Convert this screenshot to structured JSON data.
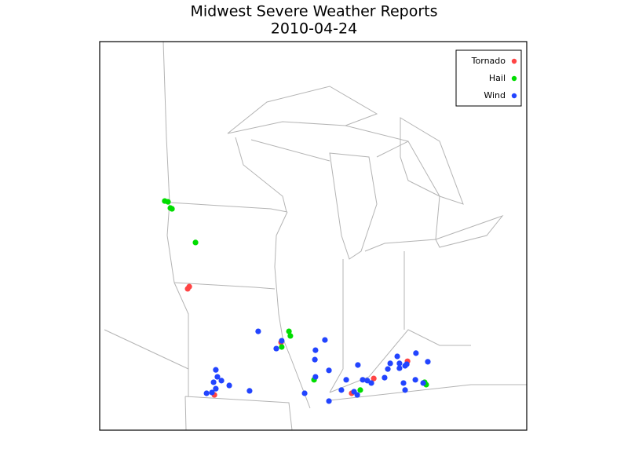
{
  "chart_data": {
    "type": "scatter",
    "title": "Midwest Severe Weather Reports",
    "subtitle": "2010-04-24",
    "series": [
      {
        "name": "Tornado",
        "color": "#ff4444",
        "lon": [
          -95.56,
          -95.48,
          -94.23,
          -90.91,
          -87.4,
          -86.3,
          -84.62
        ],
        "lat": [
          40.5,
          40.58,
          36.56,
          38.51,
          36.62,
          37.17,
          37.81
        ]
      },
      {
        "name": "Hail",
        "color": "#00dd00",
        "lon": [
          -96.7,
          -96.54,
          -96.42,
          -96.34,
          -95.17,
          -90.52,
          -90.45,
          -90.88,
          -89.27,
          -86.97,
          -83.77,
          -83.69
        ],
        "lat": [
          43.76,
          43.73,
          43.5,
          43.47,
          42.22,
          38.92,
          38.75,
          38.34,
          37.12,
          36.74,
          37.03,
          36.94
        ]
      },
      {
        "name": "Wind",
        "color": "#2244ff",
        "lon": [
          -92.05,
          -90.88,
          -91.15,
          -89.2,
          -88.73,
          -89.23,
          -88.53,
          -89.2,
          -94.16,
          -94.08,
          -94.27,
          -93.88,
          -93.49,
          -94.35,
          -94.62,
          -94.16,
          -92.48,
          -89.74,
          -87.91,
          -88.53,
          -87.67,
          -87.09,
          -86.85,
          -86.62,
          -86.42,
          -87.12,
          -87.28,
          -85.76,
          -85.6,
          -85.48,
          -85.13,
          -85.02,
          -84.74,
          -85.02,
          -84.82,
          -84.2,
          -84.23,
          -83.61,
          -84.66,
          -83.84,
          -84.74
        ],
        "lat": [
          38.92,
          38.57,
          38.28,
          38.22,
          38.6,
          37.87,
          37.47,
          37.23,
          37.49,
          37.23,
          37.03,
          37.09,
          36.91,
          36.65,
          36.62,
          36.79,
          36.71,
          36.62,
          36.74,
          36.33,
          37.12,
          37.67,
          37.12,
          37.09,
          37.0,
          36.56,
          36.68,
          37.2,
          37.52,
          37.73,
          37.99,
          37.55,
          37.64,
          37.73,
          37.0,
          38.11,
          37.12,
          37.79,
          37.7,
          37.0,
          36.74
        ]
      }
    ]
  }
}
